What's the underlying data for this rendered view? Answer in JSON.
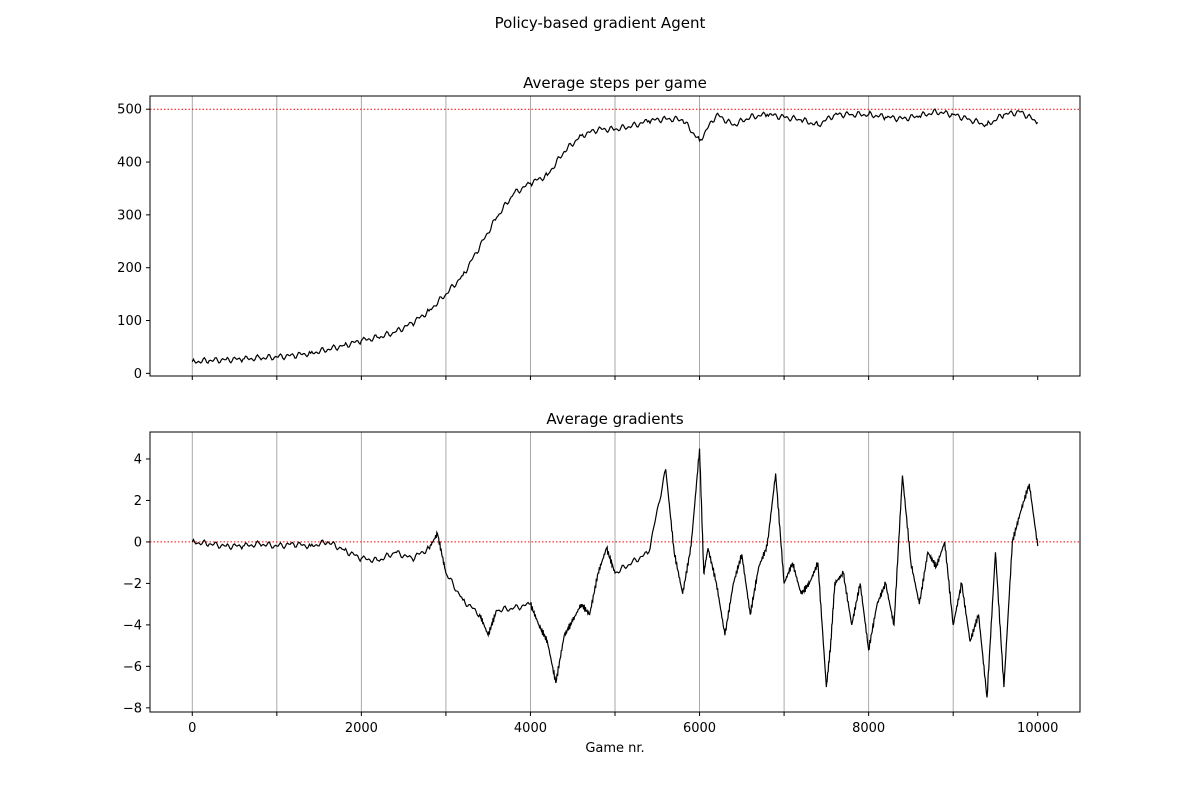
{
  "figure": {
    "suptitle": "Policy-based gradient Agent",
    "xlabel": "Game nr."
  },
  "chart_data": [
    {
      "type": "line",
      "title": "Average steps per game",
      "xlabel": "",
      "ylabel": "",
      "xlim": [
        -500,
        10500
      ],
      "ylim": [
        -5,
        525
      ],
      "xticks": [
        0,
        1000,
        2000,
        3000,
        4000,
        5000,
        6000,
        7000,
        8000,
        9000,
        10000
      ],
      "xtick_labels": [],
      "yticks": [
        0,
        100,
        200,
        300,
        400,
        500
      ],
      "ytick_labels": [
        "0",
        "100",
        "200",
        "300",
        "400",
        "500"
      ],
      "vertical_gridlines": [
        0,
        1000,
        2000,
        3000,
        4000,
        5000,
        6000,
        7000,
        8000,
        9000
      ],
      "reference_line": {
        "y": 500,
        "color": "#ff0000",
        "style": "dotted"
      },
      "line_color": "#000000",
      "series": [
        {
          "name": "Average steps",
          "x": [
            0,
            200,
            400,
            600,
            800,
            1000,
            1200,
            1400,
            1600,
            1800,
            2000,
            2200,
            2400,
            2600,
            2800,
            3000,
            3200,
            3400,
            3600,
            3800,
            4000,
            4200,
            4400,
            4600,
            4800,
            5000,
            5200,
            5400,
            5600,
            5800,
            6000,
            6200,
            6400,
            6600,
            6800,
            7000,
            7200,
            7400,
            7600,
            7800,
            8000,
            8200,
            8400,
            8600,
            8800,
            9000,
            9200,
            9400,
            9600,
            9800,
            10000
          ],
          "y": [
            22,
            24,
            26,
            27,
            29,
            31,
            34,
            38,
            45,
            53,
            62,
            68,
            78,
            95,
            118,
            150,
            185,
            240,
            295,
            340,
            360,
            375,
            420,
            450,
            462,
            462,
            468,
            478,
            482,
            480,
            440,
            490,
            470,
            485,
            490,
            485,
            480,
            470,
            490,
            490,
            490,
            485,
            482,
            487,
            495,
            490,
            480,
            470,
            490,
            495,
            475
          ]
        }
      ]
    },
    {
      "type": "line",
      "title": "Average gradients",
      "xlabel": "Game nr.",
      "ylabel": "",
      "xlim": [
        -500,
        10500
      ],
      "ylim": [
        -8.2,
        5.3
      ],
      "xticks": [
        0,
        1000,
        2000,
        3000,
        4000,
        5000,
        6000,
        7000,
        8000,
        9000,
        10000
      ],
      "xtick_labels": [
        "0",
        "2000",
        "4000",
        "6000",
        "8000",
        "10000"
      ],
      "yticks": [
        -8,
        -6,
        -4,
        -2,
        0,
        2,
        4
      ],
      "ytick_labels": [
        "−8",
        "−6",
        "−4",
        "−2",
        "0",
        "2",
        "4"
      ],
      "vertical_gridlines": [
        0,
        1000,
        2000,
        3000,
        4000,
        5000,
        6000,
        7000,
        8000,
        9000
      ],
      "reference_line": {
        "y": 0,
        "color": "#ff0000",
        "style": "dotted"
      },
      "line_color": "#000000",
      "series": [
        {
          "name": "Average gradient",
          "x": [
            0,
            200,
            400,
            600,
            800,
            1000,
            1200,
            1400,
            1600,
            1800,
            2000,
            2200,
            2400,
            2600,
            2800,
            2900,
            3000,
            3200,
            3400,
            3500,
            3600,
            3800,
            4000,
            4100,
            4200,
            4300,
            4400,
            4500,
            4600,
            4700,
            4800,
            4900,
            5000,
            5200,
            5400,
            5600,
            5700,
            5800,
            5900,
            6000,
            6050,
            6100,
            6200,
            6300,
            6400,
            6500,
            6600,
            6700,
            6800,
            6900,
            7000,
            7100,
            7200,
            7300,
            7400,
            7500,
            7550,
            7600,
            7700,
            7800,
            7900,
            8000,
            8100,
            8200,
            8300,
            8400,
            8500,
            8600,
            8700,
            8800,
            8900,
            9000,
            9100,
            9200,
            9300,
            9400,
            9500,
            9600,
            9700,
            9800,
            9900,
            10000
          ],
          "y": [
            0.0,
            -0.1,
            -0.2,
            -0.2,
            -0.1,
            -0.2,
            -0.1,
            -0.2,
            0.0,
            -0.4,
            -0.8,
            -0.9,
            -0.5,
            -0.8,
            -0.3,
            0.4,
            -1.5,
            -2.8,
            -3.5,
            -4.5,
            -3.3,
            -3.2,
            -3.0,
            -4.0,
            -4.8,
            -6.8,
            -4.5,
            -3.8,
            -3.0,
            -3.5,
            -1.5,
            -0.3,
            -1.5,
            -1.0,
            -0.5,
            3.5,
            -0.5,
            -2.5,
            -0.2,
            4.5,
            -1.5,
            -0.3,
            -2.0,
            -4.5,
            -2.0,
            -0.6,
            -3.5,
            -1.2,
            -0.2,
            3.3,
            -2.0,
            -1.0,
            -2.5,
            -2.0,
            -1.0,
            -7.0,
            -5.0,
            -2.0,
            -1.5,
            -4.0,
            -2.0,
            -5.2,
            -3.0,
            -2.0,
            -4.0,
            3.2,
            -1.0,
            -3.0,
            -0.5,
            -1.2,
            0.0,
            -4.0,
            -2.0,
            -4.8,
            -3.5,
            -7.5,
            -0.5,
            -7.0,
            0.0,
            1.5,
            2.8,
            -0.2
          ]
        }
      ]
    }
  ]
}
